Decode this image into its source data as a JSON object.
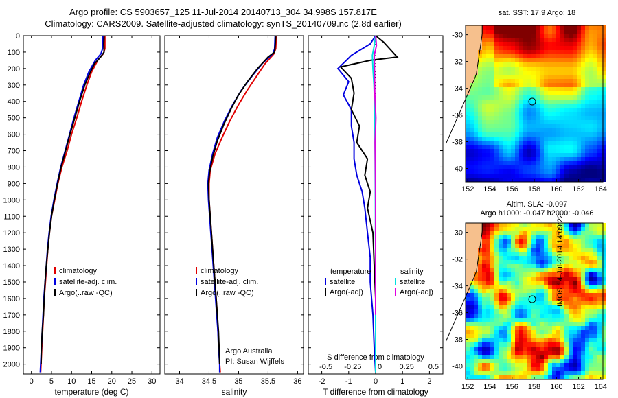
{
  "header": {
    "line1": "Argo profile: CS 5903657_125 11-Jul-2014 20140713_304 34.998S 157.817E",
    "line2": "Climatology: CARS2009. Satellite-adjusted climatology: synTS_20140709.nc (2.8d earlier)"
  },
  "colors": {
    "climatology": "#e00000",
    "satellite": "#0000e0",
    "argo": "#000000",
    "sal_satellite": "#00e0e0",
    "sal_argo": "#e000e0"
  },
  "chart_data": [
    {
      "type": "line",
      "name": "temperature-profile",
      "xlabel": "temperature (deg C)",
      "ylabel": "",
      "xlim": [
        -2,
        32
      ],
      "ylim": [
        2060,
        0
      ],
      "xticks": [
        0,
        5,
        10,
        15,
        20,
        25,
        30
      ],
      "yticks": [
        0,
        100,
        200,
        300,
        400,
        500,
        600,
        700,
        800,
        900,
        1000,
        1100,
        1200,
        1300,
        1400,
        1500,
        1600,
        1700,
        1800,
        1900,
        2000
      ],
      "legend": [
        "climatology",
        "satellite-adj. clim.",
        "Argo(..raw -QC)"
      ],
      "series": [
        {
          "name": "climatology",
          "color": "#e00000",
          "points": [
            [
              18.3,
              0
            ],
            [
              18.3,
              80
            ],
            [
              17.9,
              110
            ],
            [
              16.5,
              150
            ],
            [
              15.0,
              220
            ],
            [
              13.8,
              300
            ],
            [
              12.5,
              400
            ],
            [
              11.3,
              500
            ],
            [
              10.0,
              600
            ],
            [
              8.9,
              700
            ],
            [
              7.6,
              800
            ],
            [
              6.6,
              900
            ],
            [
              5.8,
              1000
            ],
            [
              5.0,
              1100
            ],
            [
              4.5,
              1200
            ],
            [
              4.1,
              1300
            ],
            [
              3.8,
              1400
            ],
            [
              3.5,
              1500
            ],
            [
              3.2,
              1600
            ],
            [
              3.0,
              1700
            ],
            [
              2.8,
              1800
            ],
            [
              2.6,
              1900
            ],
            [
              2.4,
              2000
            ],
            [
              2.3,
              2050
            ]
          ]
        },
        {
          "name": "satellite-adj. clim.",
          "color": "#0000e0",
          "points": [
            [
              17.8,
              0
            ],
            [
              17.7,
              80
            ],
            [
              17.3,
              110
            ],
            [
              15.9,
              150
            ],
            [
              14.3,
              220
            ],
            [
              13.0,
              300
            ],
            [
              11.8,
              400
            ],
            [
              10.6,
              500
            ],
            [
              9.5,
              600
            ],
            [
              8.4,
              700
            ],
            [
              7.3,
              800
            ],
            [
              6.4,
              900
            ],
            [
              5.6,
              1000
            ],
            [
              4.9,
              1100
            ],
            [
              4.4,
              1200
            ],
            [
              4.0,
              1300
            ],
            [
              3.7,
              1400
            ],
            [
              3.4,
              1500
            ],
            [
              3.1,
              1600
            ],
            [
              2.9,
              1700
            ],
            [
              2.7,
              1800
            ],
            [
              2.5,
              1900
            ],
            [
              2.3,
              2000
            ],
            [
              2.2,
              2050
            ]
          ]
        },
        {
          "name": "Argo(..raw -QC)",
          "color": "#000000",
          "points": [
            [
              18.1,
              5
            ],
            [
              18.0,
              50
            ],
            [
              18.1,
              100
            ],
            [
              17.2,
              130
            ],
            [
              15.7,
              170
            ],
            [
              14.5,
              230
            ],
            [
              13.3,
              300
            ],
            [
              12.0,
              400
            ],
            [
              10.8,
              500
            ],
            [
              9.6,
              600
            ],
            [
              8.5,
              700
            ],
            [
              7.4,
              800
            ],
            [
              6.5,
              900
            ],
            [
              5.7,
              1000
            ],
            [
              5.0,
              1100
            ],
            [
              4.5,
              1200
            ],
            [
              4.1,
              1300
            ],
            [
              3.7,
              1400
            ],
            [
              3.4,
              1500
            ],
            [
              3.2,
              1600
            ],
            [
              3.0,
              1700
            ],
            [
              2.7,
              1800
            ],
            [
              2.5,
              1900
            ],
            [
              2.4,
              2000
            ]
          ]
        }
      ]
    },
    {
      "type": "line",
      "name": "salinity-profile",
      "xlabel": "salinity",
      "xlim": [
        33.75,
        36.1
      ],
      "ylim": [
        2060,
        0
      ],
      "xticks": [
        34,
        34.5,
        35,
        35.5,
        36
      ],
      "legend": [
        "climatology",
        "satellite-adj. clim.",
        "Argo(..raw -QC)"
      ],
      "annotation": [
        "Argo Australia",
        "PI: Susan Wijffels"
      ],
      "series": [
        {
          "name": "climatology",
          "color": "#e00000",
          "points": [
            [
              35.64,
              0
            ],
            [
              35.63,
              80
            ],
            [
              35.6,
              110
            ],
            [
              35.45,
              170
            ],
            [
              35.3,
              250
            ],
            [
              35.15,
              330
            ],
            [
              35.0,
              420
            ],
            [
              34.85,
              520
            ],
            [
              34.72,
              620
            ],
            [
              34.6,
              720
            ],
            [
              34.52,
              820
            ],
            [
              34.5,
              900
            ],
            [
              34.5,
              1000
            ],
            [
              34.52,
              1100
            ],
            [
              34.54,
              1200
            ],
            [
              34.56,
              1300
            ],
            [
              34.58,
              1400
            ],
            [
              34.6,
              1500
            ],
            [
              34.62,
              1600
            ],
            [
              34.64,
              1700
            ],
            [
              34.65,
              1800
            ],
            [
              34.67,
              1900
            ],
            [
              34.68,
              2000
            ],
            [
              34.69,
              2050
            ]
          ]
        },
        {
          "name": "satellite-adj. clim.",
          "color": "#0000e0",
          "points": [
            [
              35.62,
              0
            ],
            [
              35.61,
              80
            ],
            [
              35.58,
              110
            ],
            [
              35.4,
              170
            ],
            [
              35.22,
              250
            ],
            [
              35.05,
              330
            ],
            [
              34.9,
              420
            ],
            [
              34.76,
              520
            ],
            [
              34.64,
              620
            ],
            [
              34.56,
              720
            ],
            [
              34.5,
              820
            ],
            [
              34.48,
              900
            ],
            [
              34.49,
              1000
            ],
            [
              34.51,
              1100
            ],
            [
              34.53,
              1200
            ],
            [
              34.55,
              1300
            ],
            [
              34.57,
              1400
            ],
            [
              34.59,
              1500
            ],
            [
              34.61,
              1600
            ],
            [
              34.63,
              1700
            ],
            [
              34.65,
              1800
            ],
            [
              34.66,
              1900
            ],
            [
              34.68,
              2000
            ],
            [
              34.68,
              2050
            ]
          ]
        },
        {
          "name": "Argo(..raw -QC)",
          "color": "#000000",
          "points": [
            [
              35.63,
              5
            ],
            [
              35.62,
              60
            ],
            [
              35.61,
              100
            ],
            [
              35.5,
              130
            ],
            [
              35.32,
              200
            ],
            [
              35.15,
              280
            ],
            [
              35.0,
              360
            ],
            [
              34.88,
              440
            ],
            [
              34.75,
              540
            ],
            [
              34.64,
              640
            ],
            [
              34.56,
              740
            ],
            [
              34.51,
              830
            ],
            [
              34.49,
              900
            ],
            [
              34.5,
              1000
            ],
            [
              34.52,
              1100
            ],
            [
              34.54,
              1200
            ],
            [
              34.56,
              1300
            ],
            [
              34.58,
              1400
            ],
            [
              34.6,
              1500
            ],
            [
              34.62,
              1600
            ],
            [
              34.64,
              1700
            ],
            [
              34.66,
              1800
            ],
            [
              34.67,
              1900
            ],
            [
              34.68,
              2000
            ]
          ]
        }
      ]
    },
    {
      "type": "line",
      "name": "difference-profile",
      "xlabel": "T difference from climatology",
      "xlabel_top": "S difference from climatology",
      "xlim": [
        -2.5,
        2.5
      ],
      "ylim": [
        2060,
        0
      ],
      "xticks": [
        -2,
        -1,
        0,
        1,
        2
      ],
      "xticks_s": [
        -0.5,
        -0.25,
        0,
        0.25,
        0.5
      ],
      "legend_t": {
        "title": "temperature",
        "items": [
          "satellite",
          "Argo(-adj)"
        ]
      },
      "legend_s": {
        "title": "salinity",
        "items": [
          "satellite",
          "Argo(-adj)"
        ]
      },
      "series": [
        {
          "name": "T satellite",
          "color": "#0000e0",
          "points": [
            [
              0,
              0
            ],
            [
              -0.2,
              50
            ],
            [
              -0.9,
              120
            ],
            [
              -1.4,
              200
            ],
            [
              -1.0,
              280
            ],
            [
              -1.2,
              360
            ],
            [
              -0.9,
              450
            ],
            [
              -0.9,
              550
            ],
            [
              -0.8,
              650
            ],
            [
              -0.8,
              750
            ],
            [
              -0.7,
              850
            ],
            [
              -0.5,
              950
            ],
            [
              -0.4,
              1050
            ],
            [
              -0.3,
              1200
            ],
            [
              -0.2,
              1350
            ],
            [
              -0.2,
              1500
            ],
            [
              -0.1,
              1700
            ],
            [
              -0.05,
              1900
            ],
            [
              0,
              2050
            ]
          ]
        },
        {
          "name": "T Argo(-adj)",
          "color": "#000000",
          "points": [
            [
              0,
              0
            ],
            [
              0.3,
              40
            ],
            [
              0.8,
              130
            ],
            [
              -0.2,
              150
            ],
            [
              -1.3,
              190
            ],
            [
              -0.9,
              260
            ],
            [
              -0.8,
              350
            ],
            [
              -0.9,
              450
            ],
            [
              -0.6,
              550
            ],
            [
              -0.7,
              650
            ],
            [
              -0.3,
              750
            ],
            [
              -0.4,
              850
            ],
            [
              -0.2,
              950
            ],
            [
              -0.3,
              1050
            ],
            [
              -0.1,
              1200
            ],
            [
              -0.05,
              1400
            ],
            [
              0,
              1600
            ],
            [
              0,
              1700
            ]
          ]
        },
        {
          "name": "S satellite",
          "color": "#00e0e0",
          "points": [
            [
              0,
              0
            ],
            [
              -0.05,
              60
            ],
            [
              -0.12,
              120
            ],
            [
              -0.1,
              200
            ],
            [
              -0.06,
              300
            ],
            [
              -0.03,
              450
            ],
            [
              -0.02,
              700
            ],
            [
              -0.01,
              1000
            ],
            [
              0,
              1400
            ],
            [
              0,
              2050
            ]
          ]
        },
        {
          "name": "S Argo(-adj)",
          "color": "#e000e0",
          "points": [
            [
              0,
              0
            ],
            [
              0.03,
              60
            ],
            [
              -0.05,
              120
            ],
            [
              -0.04,
              220
            ],
            [
              -0.03,
              350
            ],
            [
              0.01,
              500
            ],
            [
              -0.02,
              650
            ],
            [
              -0.01,
              800
            ],
            [
              0,
              1000
            ],
            [
              0,
              1400
            ],
            [
              0,
              1700
            ]
          ]
        }
      ]
    }
  ],
  "maps": {
    "sst": {
      "title": "sat. SST: 17.9 Argo: 18",
      "lon_ticks": [
        152,
        154,
        156,
        158,
        160,
        162,
        164
      ],
      "lat_ticks": [
        -30,
        -32,
        -34,
        -36,
        -38,
        -40
      ],
      "float_lon": 157.817,
      "float_lat": -34.998
    },
    "sla": {
      "title1": "Altim. SLA: -0.097",
      "title2": "Argo h1000: -0.047 h2000: -0.046",
      "lon_ticks": [
        152,
        154,
        156,
        158,
        160,
        162,
        164
      ],
      "lat_ticks": [
        -30,
        -32,
        -34,
        -36,
        -38,
        -40
      ],
      "float_lon": 157.817,
      "float_lat": -34.998
    }
  },
  "stamp": "IMOS 14-Jul-2014 14:09:22"
}
